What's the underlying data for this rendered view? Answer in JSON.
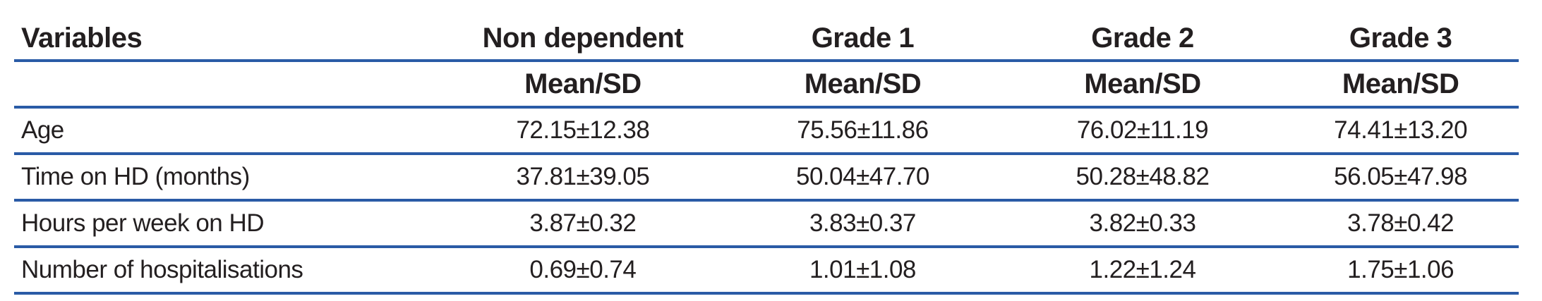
{
  "table": {
    "columns": [
      "Variables",
      "Non dependent",
      "Grade 1",
      "Grade 2",
      "Grade 3"
    ],
    "subheader": [
      "",
      "Mean/SD",
      "Mean/SD",
      "Mean/SD",
      "Mean/SD"
    ],
    "rows": [
      {
        "label": "Age",
        "values": [
          "72.15±12.38",
          "75.56±11.86",
          "76.02±11.19",
          "74.41±13.20"
        ]
      },
      {
        "label": "Time on HD (months)",
        "values": [
          "37.81±39.05",
          "50.04±47.70",
          "50.28±48.82",
          "56.05±47.98"
        ]
      },
      {
        "label": "Hours per week on HD",
        "values": [
          "3.87±0.32",
          "3.83±0.37",
          "3.82±0.33",
          "3.78±0.42"
        ]
      },
      {
        "label": "Number of hospitalisations",
        "values": [
          "0.69±0.74",
          "1.01±1.08",
          "1.22±1.24",
          "1.75±1.06"
        ]
      }
    ],
    "colors": {
      "rule_blue": "#2a5ba6",
      "text": "#231f20"
    }
  }
}
